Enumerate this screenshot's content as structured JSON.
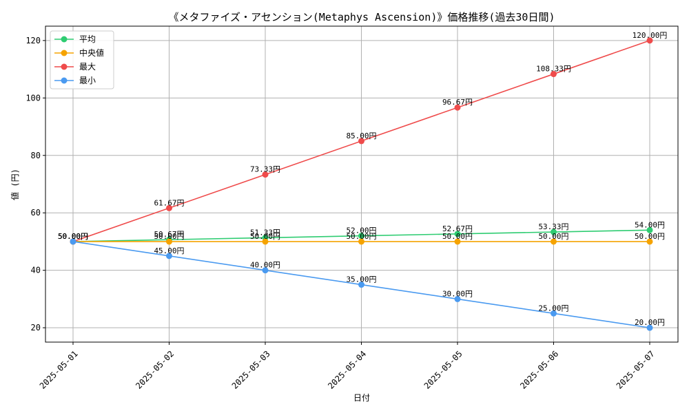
{
  "chart_data": {
    "type": "line",
    "title": "《メタファイズ・アセンション(Metaphys Ascension)》価格推移(過去30日間)",
    "xlabel": "日付",
    "ylabel": "値 (円)",
    "categories": [
      "2025-05-01",
      "2025-05-02",
      "2025-05-03",
      "2025-05-04",
      "2025-05-05",
      "2025-05-06",
      "2025-05-07"
    ],
    "ylim": [
      15,
      125
    ],
    "yticks": [
      20,
      40,
      60,
      80,
      100,
      120
    ],
    "grid": true,
    "legend_position": "top-left",
    "value_suffix": "円",
    "series": [
      {
        "name": "平均",
        "color": "#2ecc71",
        "values": [
          50.0,
          50.67,
          51.33,
          52.0,
          52.67,
          53.33,
          54.0
        ]
      },
      {
        "name": "中央値",
        "color": "#f5a300",
        "values": [
          50.0,
          50.0,
          50.0,
          50.0,
          50.0,
          50.0,
          50.0
        ]
      },
      {
        "name": "最大",
        "color": "#ef4b4b",
        "values": [
          50.0,
          61.67,
          73.33,
          85.0,
          96.67,
          108.33,
          120.0
        ]
      },
      {
        "name": "最小",
        "color": "#4a9af0",
        "values": [
          50.0,
          45.0,
          40.0,
          35.0,
          30.0,
          25.0,
          20.0
        ]
      }
    ]
  }
}
